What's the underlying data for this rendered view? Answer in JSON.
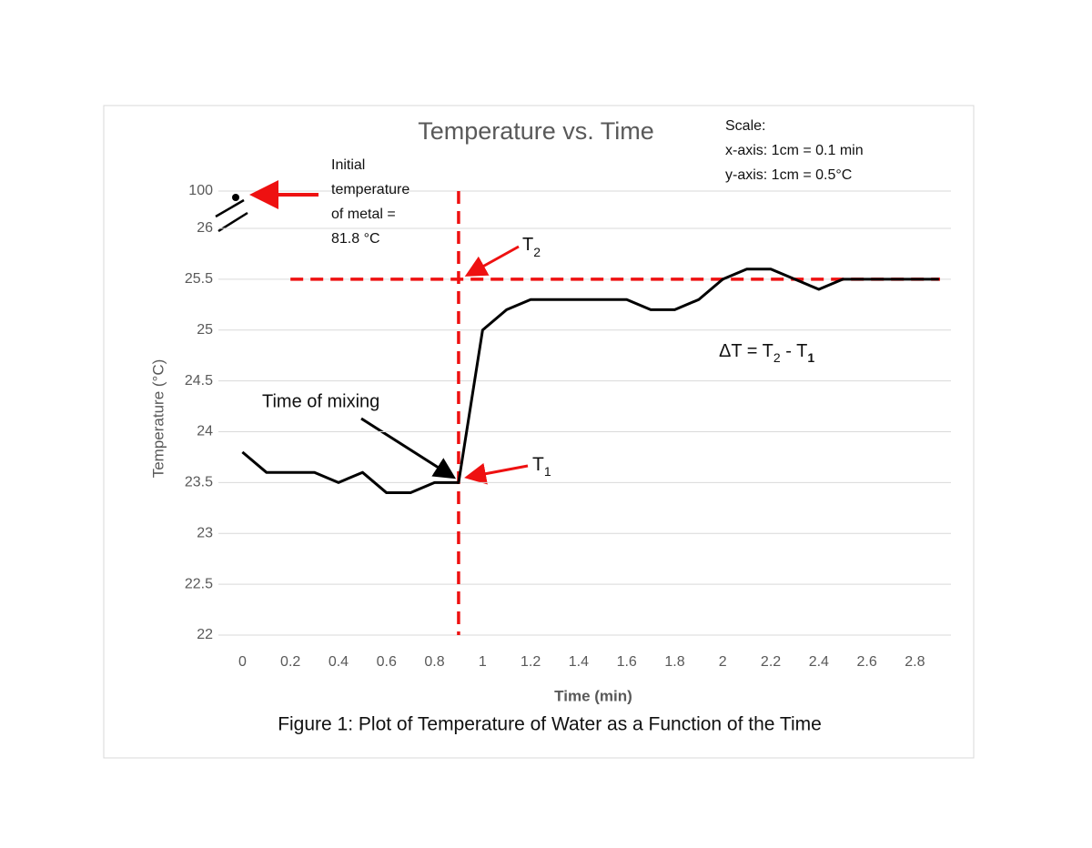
{
  "chart_data": {
    "type": "line",
    "title": "Temperature vs. Time",
    "x_label": "Time (min)",
    "y_label": "Temperature (°C)",
    "caption": "Figure 1: Plot of Temperature of Water as a Function of the Time",
    "scale_note": [
      "Scale:",
      "x-axis: 1cm = 0.1 min",
      "y-axis: 1cm = 0.5°C"
    ],
    "axis_break_label": "100",
    "initial_temp_note": [
      "Initial",
      "temperature",
      "of metal =",
      "81.8 °C"
    ],
    "mixing_note": "Time of mixing",
    "t2_label": [
      "T",
      "2"
    ],
    "t1_label": [
      "T",
      "1"
    ],
    "delta_t_label": [
      "ΔT = T",
      "2",
      " - T",
      "1"
    ],
    "x": [
      0,
      0.1,
      0.2,
      0.3,
      0.4,
      0.5,
      0.6,
      0.7,
      0.8,
      0.9,
      1.0,
      1.1,
      1.2,
      1.3,
      1.4,
      1.5,
      1.6,
      1.7,
      1.8,
      1.9,
      2.0,
      2.1,
      2.2,
      2.3,
      2.4,
      2.5,
      2.6,
      2.7,
      2.8,
      2.9
    ],
    "series": [
      {
        "name": "Temperature",
        "color": "#000000",
        "values": [
          23.8,
          23.6,
          23.6,
          23.6,
          23.5,
          23.6,
          23.4,
          23.4,
          23.5,
          23.5,
          25.0,
          25.2,
          25.3,
          25.3,
          25.3,
          25.3,
          25.3,
          25.2,
          25.2,
          25.3,
          25.5,
          25.6,
          25.6,
          25.5,
          25.4,
          25.5,
          25.5,
          25.5,
          25.5,
          25.5
        ]
      }
    ],
    "reference_lines": {
      "color": "#ee1111",
      "mixing_time": 0.9,
      "t2": 25.5,
      "t2_start": 0.2
    },
    "xlim": [
      -0.1,
      2.95
    ],
    "ylim": [
      22,
      26
    ],
    "xticks": [
      0,
      0.2,
      0.4,
      0.6,
      0.8,
      1,
      1.2,
      1.4,
      1.6,
      1.8,
      2,
      2.2,
      2.4,
      2.6,
      2.8
    ],
    "yticks": [
      22,
      22.5,
      23,
      23.5,
      24,
      24.5,
      25,
      25.5,
      26
    ],
    "grid": true
  }
}
